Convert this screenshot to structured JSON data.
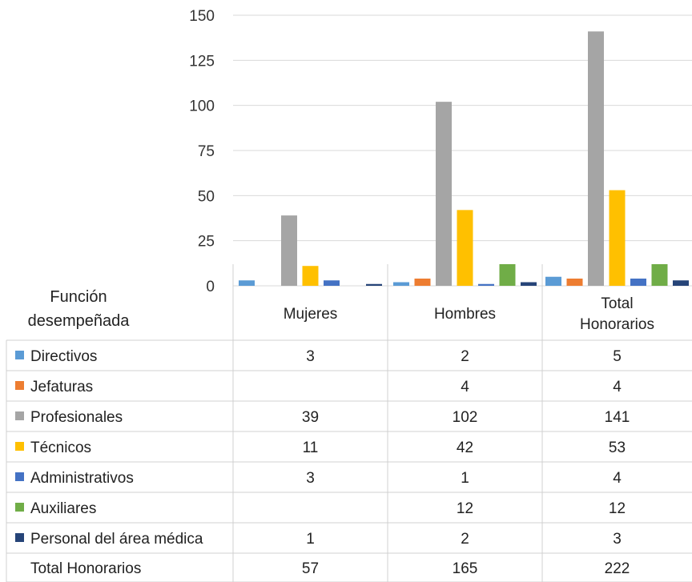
{
  "chart_data": {
    "type": "bar",
    "title": "",
    "xlabel": "",
    "ylabel": "",
    "ylim": [
      0,
      150
    ],
    "yticks": [
      0,
      25,
      50,
      75,
      100,
      125,
      150
    ],
    "grid": true,
    "legend": "data-table-left",
    "row_header": [
      "Función",
      "desempeñada"
    ],
    "categories": [
      "Mujeres",
      "Hombres",
      [
        "Total",
        "Honorarios"
      ]
    ],
    "series": [
      {
        "name": "Directivos",
        "color": "#5B9BD5",
        "values": [
          3,
          2,
          5
        ]
      },
      {
        "name": "Jefaturas",
        "color": "#ED7D31",
        "values": [
          null,
          4,
          4
        ]
      },
      {
        "name": "Profesionales",
        "color": "#A5A5A5",
        "values": [
          39,
          102,
          141
        ]
      },
      {
        "name": "Técnicos",
        "color": "#FFC000",
        "values": [
          11,
          42,
          53
        ]
      },
      {
        "name": "Administrativos",
        "color": "#4472C4",
        "values": [
          3,
          1,
          4
        ]
      },
      {
        "name": "Auxiliares",
        "color": "#70AD47",
        "values": [
          null,
          12,
          12
        ]
      },
      {
        "name": "Personal del área médica",
        "color": "#264478",
        "values": [
          1,
          2,
          3
        ]
      }
    ],
    "total_row": {
      "label": "Total Honorarios",
      "values": [
        57,
        165,
        222
      ]
    }
  }
}
